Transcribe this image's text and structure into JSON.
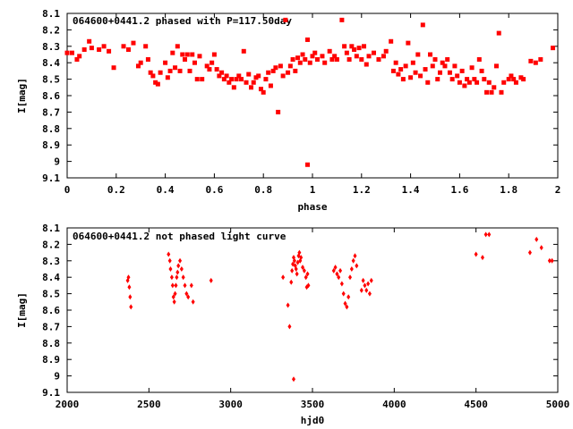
{
  "colors": {
    "point": "#ff0000",
    "axis": "#000000",
    "background": "#ffffff"
  },
  "chart_data": [
    {
      "type": "scatter",
      "title": "064600+0441.2 phased with P=117.50day",
      "xlabel": "phase",
      "ylabel": "I[mag]",
      "xlim": [
        0,
        2
      ],
      "ylim": [
        8.1,
        9.1
      ],
      "y_inverted": true,
      "grid": false,
      "legend": "none",
      "xticks": [
        "0",
        "0.2",
        "0.4",
        "0.6",
        "0.8",
        "1",
        "1.2",
        "1.4",
        "1.6",
        "1.8",
        "2"
      ],
      "yticks": [
        "8.1",
        "8.2",
        "8.3",
        "8.4",
        "8.5",
        "8.6",
        "8.7",
        "8.8",
        "8.9",
        "9",
        "9.1"
      ],
      "points": [
        [
          0.0,
          8.34
        ],
        [
          0.02,
          8.34
        ],
        [
          0.04,
          8.38
        ],
        [
          0.05,
          8.36
        ],
        [
          0.07,
          8.32
        ],
        [
          0.09,
          8.27
        ],
        [
          0.1,
          8.31
        ],
        [
          0.13,
          8.32
        ],
        [
          0.15,
          8.3
        ],
        [
          0.17,
          8.33
        ],
        [
          0.19,
          8.43
        ],
        [
          0.23,
          8.3
        ],
        [
          0.25,
          8.32
        ],
        [
          0.27,
          8.28
        ],
        [
          0.29,
          8.42
        ],
        [
          0.3,
          8.4
        ],
        [
          0.32,
          8.3
        ],
        [
          0.33,
          8.38
        ],
        [
          0.34,
          8.46
        ],
        [
          0.35,
          8.48
        ],
        [
          0.36,
          8.52
        ],
        [
          0.37,
          8.53
        ],
        [
          0.38,
          8.46
        ],
        [
          0.4,
          8.4
        ],
        [
          0.41,
          8.49
        ],
        [
          0.42,
          8.45
        ],
        [
          0.43,
          8.34
        ],
        [
          0.44,
          8.43
        ],
        [
          0.45,
          8.3
        ],
        [
          0.46,
          8.45
        ],
        [
          0.47,
          8.35
        ],
        [
          0.48,
          8.38
        ],
        [
          0.49,
          8.35
        ],
        [
          0.5,
          8.45
        ],
        [
          0.51,
          8.35
        ],
        [
          0.52,
          8.4
        ],
        [
          0.53,
          8.5
        ],
        [
          0.54,
          8.36
        ],
        [
          0.55,
          8.5
        ],
        [
          0.57,
          8.42
        ],
        [
          0.58,
          8.44
        ],
        [
          0.59,
          8.4
        ],
        [
          0.6,
          8.35
        ],
        [
          0.61,
          8.44
        ],
        [
          0.62,
          8.48
        ],
        [
          0.63,
          8.46
        ],
        [
          0.64,
          8.5
        ],
        [
          0.65,
          8.48
        ],
        [
          0.66,
          8.52
        ],
        [
          0.67,
          8.5
        ],
        [
          0.68,
          8.55
        ],
        [
          0.69,
          8.5
        ],
        [
          0.7,
          8.48
        ],
        [
          0.71,
          8.5
        ],
        [
          0.72,
          8.33
        ],
        [
          0.73,
          8.52
        ],
        [
          0.74,
          8.47
        ],
        [
          0.75,
          8.55
        ],
        [
          0.76,
          8.52
        ],
        [
          0.77,
          8.49
        ],
        [
          0.78,
          8.48
        ],
        [
          0.79,
          8.56
        ],
        [
          0.8,
          8.58
        ],
        [
          0.81,
          8.5
        ],
        [
          0.82,
          8.46
        ],
        [
          0.83,
          8.54
        ],
        [
          0.84,
          8.45
        ],
        [
          0.85,
          8.43
        ],
        [
          0.86,
          8.7
        ],
        [
          0.87,
          8.42
        ],
        [
          0.88,
          8.48
        ],
        [
          0.89,
          8.14
        ],
        [
          0.9,
          8.46
        ],
        [
          0.91,
          8.42
        ],
        [
          0.92,
          8.38
        ],
        [
          0.93,
          8.45
        ],
        [
          0.94,
          8.37
        ],
        [
          0.95,
          8.4
        ],
        [
          0.96,
          8.35
        ],
        [
          0.97,
          8.38
        ],
        [
          0.98,
          8.26
        ],
        [
          0.98,
          9.02
        ],
        [
          0.99,
          8.4
        ],
        [
          1.0,
          8.36
        ],
        [
          1.01,
          8.34
        ],
        [
          1.02,
          8.38
        ],
        [
          1.04,
          8.36
        ],
        [
          1.05,
          8.4
        ],
        [
          1.07,
          8.33
        ],
        [
          1.08,
          8.38
        ],
        [
          1.09,
          8.36
        ],
        [
          1.1,
          8.38
        ],
        [
          1.12,
          8.14
        ],
        [
          1.13,
          8.3
        ],
        [
          1.14,
          8.34
        ],
        [
          1.15,
          8.38
        ],
        [
          1.16,
          8.3
        ],
        [
          1.17,
          8.32
        ],
        [
          1.18,
          8.36
        ],
        [
          1.19,
          8.31
        ],
        [
          1.2,
          8.38
        ],
        [
          1.21,
          8.3
        ],
        [
          1.22,
          8.41
        ],
        [
          1.23,
          8.36
        ],
        [
          1.25,
          8.34
        ],
        [
          1.27,
          8.38
        ],
        [
          1.29,
          8.36
        ],
        [
          1.3,
          8.33
        ],
        [
          1.32,
          8.27
        ],
        [
          1.33,
          8.45
        ],
        [
          1.34,
          8.4
        ],
        [
          1.35,
          8.47
        ],
        [
          1.36,
          8.44
        ],
        [
          1.37,
          8.5
        ],
        [
          1.38,
          8.42
        ],
        [
          1.39,
          8.28
        ],
        [
          1.4,
          8.49
        ],
        [
          1.41,
          8.4
        ],
        [
          1.42,
          8.46
        ],
        [
          1.43,
          8.35
        ],
        [
          1.44,
          8.48
        ],
        [
          1.45,
          8.17
        ],
        [
          1.46,
          8.44
        ],
        [
          1.47,
          8.52
        ],
        [
          1.48,
          8.35
        ],
        [
          1.49,
          8.42
        ],
        [
          1.5,
          8.38
        ],
        [
          1.51,
          8.5
        ],
        [
          1.52,
          8.46
        ],
        [
          1.53,
          8.4
        ],
        [
          1.54,
          8.42
        ],
        [
          1.55,
          8.38
        ],
        [
          1.56,
          8.46
        ],
        [
          1.57,
          8.5
        ],
        [
          1.58,
          8.42
        ],
        [
          1.59,
          8.48
        ],
        [
          1.6,
          8.52
        ],
        [
          1.61,
          8.45
        ],
        [
          1.62,
          8.54
        ],
        [
          1.63,
          8.5
        ],
        [
          1.64,
          8.52
        ],
        [
          1.65,
          8.43
        ],
        [
          1.66,
          8.5
        ],
        [
          1.67,
          8.52
        ],
        [
          1.68,
          8.38
        ],
        [
          1.69,
          8.45
        ],
        [
          1.7,
          8.5
        ],
        [
          1.71,
          8.58
        ],
        [
          1.72,
          8.52
        ],
        [
          1.73,
          8.58
        ],
        [
          1.74,
          8.55
        ],
        [
          1.75,
          8.42
        ],
        [
          1.76,
          8.22
        ],
        [
          1.77,
          8.58
        ],
        [
          1.78,
          8.52
        ],
        [
          1.8,
          8.5
        ],
        [
          1.81,
          8.48
        ],
        [
          1.82,
          8.5
        ],
        [
          1.83,
          8.52
        ],
        [
          1.85,
          8.49
        ],
        [
          1.86,
          8.5
        ],
        [
          1.89,
          8.39
        ],
        [
          1.91,
          8.4
        ],
        [
          1.93,
          8.38
        ],
        [
          1.98,
          8.31
        ]
      ]
    },
    {
      "type": "scatter",
      "title": "064600+0441.2 not phased light curve",
      "xlabel": "hjd0",
      "ylabel": "I[mag]",
      "xlim": [
        2000,
        5000
      ],
      "ylim": [
        8.1,
        9.1
      ],
      "y_inverted": true,
      "grid": false,
      "legend": "none",
      "xticks": [
        "2000",
        "2500",
        "3000",
        "3500",
        "4000",
        "4500",
        "5000"
      ],
      "yticks": [
        "8.1",
        "8.2",
        "8.3",
        "8.4",
        "8.5",
        "8.6",
        "8.7",
        "8.8",
        "8.9",
        "9",
        "9.1"
      ],
      "points": [
        [
          2370,
          8.42
        ],
        [
          2375,
          8.4
        ],
        [
          2380,
          8.46
        ],
        [
          2385,
          8.52
        ],
        [
          2390,
          8.58
        ],
        [
          2620,
          8.26
        ],
        [
          2628,
          8.3
        ],
        [
          2632,
          8.35
        ],
        [
          2640,
          8.4
        ],
        [
          2645,
          8.45
        ],
        [
          2650,
          8.52
        ],
        [
          2655,
          8.55
        ],
        [
          2660,
          8.5
        ],
        [
          2665,
          8.45
        ],
        [
          2670,
          8.4
        ],
        [
          2675,
          8.37
        ],
        [
          2680,
          8.33
        ],
        [
          2690,
          8.3
        ],
        [
          2700,
          8.35
        ],
        [
          2710,
          8.4
        ],
        [
          2720,
          8.45
        ],
        [
          2730,
          8.5
        ],
        [
          2740,
          8.52
        ],
        [
          2760,
          8.45
        ],
        [
          2770,
          8.55
        ],
        [
          2880,
          8.42
        ],
        [
          3320,
          8.4
        ],
        [
          3350,
          8.57
        ],
        [
          3360,
          8.7
        ],
        [
          3370,
          8.43
        ],
        [
          3375,
          8.36
        ],
        [
          3380,
          8.32
        ],
        [
          3385,
          8.28
        ],
        [
          3390,
          8.3
        ],
        [
          3395,
          8.33
        ],
        [
          3400,
          8.35
        ],
        [
          3405,
          8.38
        ],
        [
          3410,
          8.31
        ],
        [
          3415,
          8.27
        ],
        [
          3420,
          8.25
        ],
        [
          3425,
          8.3
        ],
        [
          3430,
          8.28
        ],
        [
          3440,
          8.34
        ],
        [
          3450,
          8.36
        ],
        [
          3460,
          8.4
        ],
        [
          3465,
          8.46
        ],
        [
          3470,
          8.38
        ],
        [
          3475,
          8.45
        ],
        [
          3385,
          9.02
        ],
        [
          3630,
          8.36
        ],
        [
          3640,
          8.34
        ],
        [
          3650,
          8.38
        ],
        [
          3660,
          8.4
        ],
        [
          3670,
          8.36
        ],
        [
          3680,
          8.44
        ],
        [
          3690,
          8.5
        ],
        [
          3700,
          8.56
        ],
        [
          3710,
          8.58
        ],
        [
          3720,
          8.52
        ],
        [
          3730,
          8.4
        ],
        [
          3740,
          8.35
        ],
        [
          3750,
          8.3
        ],
        [
          3760,
          8.27
        ],
        [
          3770,
          8.33
        ],
        [
          3800,
          8.48
        ],
        [
          3810,
          8.42
        ],
        [
          3820,
          8.45
        ],
        [
          3830,
          8.48
        ],
        [
          3840,
          8.44
        ],
        [
          3850,
          8.5
        ],
        [
          3860,
          8.42
        ],
        [
          4500,
          8.26
        ],
        [
          4540,
          8.28
        ],
        [
          4560,
          8.14
        ],
        [
          4580,
          8.14
        ],
        [
          4830,
          8.25
        ],
        [
          4870,
          8.17
        ],
        [
          4900,
          8.22
        ],
        [
          4950,
          8.3
        ],
        [
          4965,
          8.3
        ]
      ]
    }
  ]
}
